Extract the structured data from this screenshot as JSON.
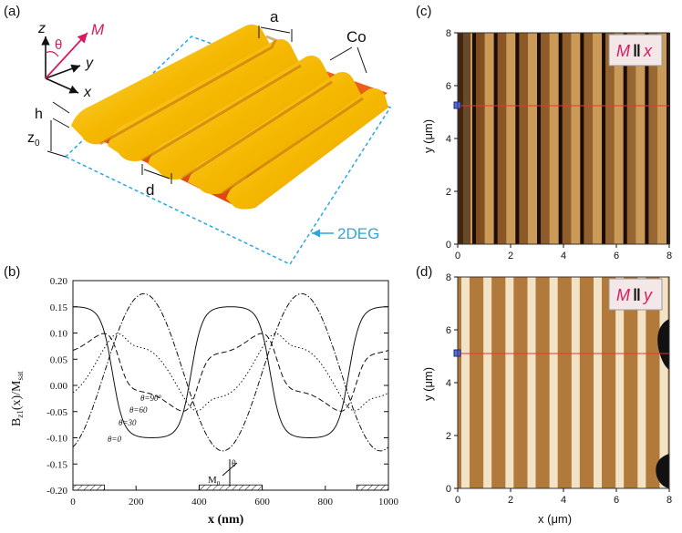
{
  "panel_a": {
    "label": "(a)",
    "axis_z": "z",
    "axis_y": "y",
    "axis_x": "x",
    "theta": "θ",
    "magnet": "M",
    "dim_a": "a",
    "material": "Co",
    "dim_h": "h",
    "dim_z0": "z",
    "dim_z0_sub": "0",
    "dim_d": "d",
    "gas": "2DEG",
    "colors": {
      "ridge": "#f5b800",
      "valley": "#e8501a",
      "arrow_m": "#d81b60",
      "gas_box": "#29a8e0"
    }
  },
  "panel_b": {
    "label": "(b)",
    "ylabel_main": "B",
    "ylabel_sub": "z1",
    "ylabel_rest": "(x)/M",
    "ylabel_sub2": "sat",
    "magnet_label": "M",
    "magnet_sub": "0",
    "magnet_theta": "θ",
    "chart_data": {
      "type": "line",
      "xlabel": "x   (nm)",
      "xlim": [
        0,
        1000
      ],
      "ylim": [
        -0.2,
        0.2
      ],
      "x_ticks": [
        "0",
        "200",
        "400",
        "600",
        "800",
        "1000"
      ],
      "y_ticks": [
        "0.20",
        "0.15",
        "0.10",
        "0.05",
        "0.00",
        "-0.05",
        "-0.10",
        "-0.15",
        "-0.20"
      ],
      "series": [
        {
          "name": "θ=0",
          "style": "solid"
        },
        {
          "name": "θ=30",
          "style": "dashed"
        },
        {
          "name": "θ=60",
          "style": "dotted"
        },
        {
          "name": "θ=90",
          "style": "dashdot"
        }
      ],
      "annotations": [
        "θ=90°",
        "θ=60",
        "θ=30",
        "θ=0"
      ],
      "magnet_strips_nm": [
        [
          0,
          100
        ],
        [
          400,
          600
        ],
        [
          900,
          1000
        ]
      ]
    }
  },
  "panel_c": {
    "label": "(c)",
    "ylabel": "y (μm)",
    "y_ticks": [
      "8",
      "6",
      "4",
      "2",
      "0"
    ],
    "x_ticks": [
      "0",
      "2",
      "4",
      "6",
      "8"
    ],
    "tag_m": "M",
    "tag_par": "‖",
    "tag_dir": "x"
  },
  "panel_d": {
    "label": "(d)",
    "ylabel": "y (μm)",
    "xlabel": "x (μm)",
    "y_ticks": [
      "8",
      "6",
      "4",
      "2",
      "0"
    ],
    "x_ticks": [
      "0",
      "2",
      "4",
      "6",
      "8"
    ],
    "tag_m": "M",
    "tag_par": "‖",
    "tag_dir": "y"
  }
}
